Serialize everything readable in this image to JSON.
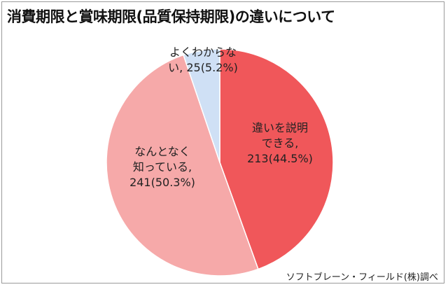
{
  "title": "消費期限と賞味期限(品質保持期限)の違いについて",
  "source": "ソフトブレーン・フィールド(株)調べ",
  "chart_data": {
    "type": "pie",
    "title": "消費期限と賞味期限(品質保持期限)の違いについて",
    "slices": [
      {
        "category": "違いを説明できる",
        "count": 213,
        "percent": 44.5,
        "label_lines": [
          "違いを説明",
          "できる,",
          "213(44.5%)"
        ],
        "color": "#f0575a"
      },
      {
        "category": "なんとなく知っている",
        "count": 241,
        "percent": 50.3,
        "label_lines": [
          "なんとなく",
          "知っている,",
          "241(50.3%)"
        ],
        "color": "#f6a9a9"
      },
      {
        "category": "よくわからない",
        "count": 25,
        "percent": 5.2,
        "label_lines": [
          "よくわからな",
          "い, 25(5.2%)"
        ],
        "color": "#cfe0f5"
      }
    ],
    "start_angle_deg": 0,
    "direction": "clockwise",
    "legend": "none"
  }
}
